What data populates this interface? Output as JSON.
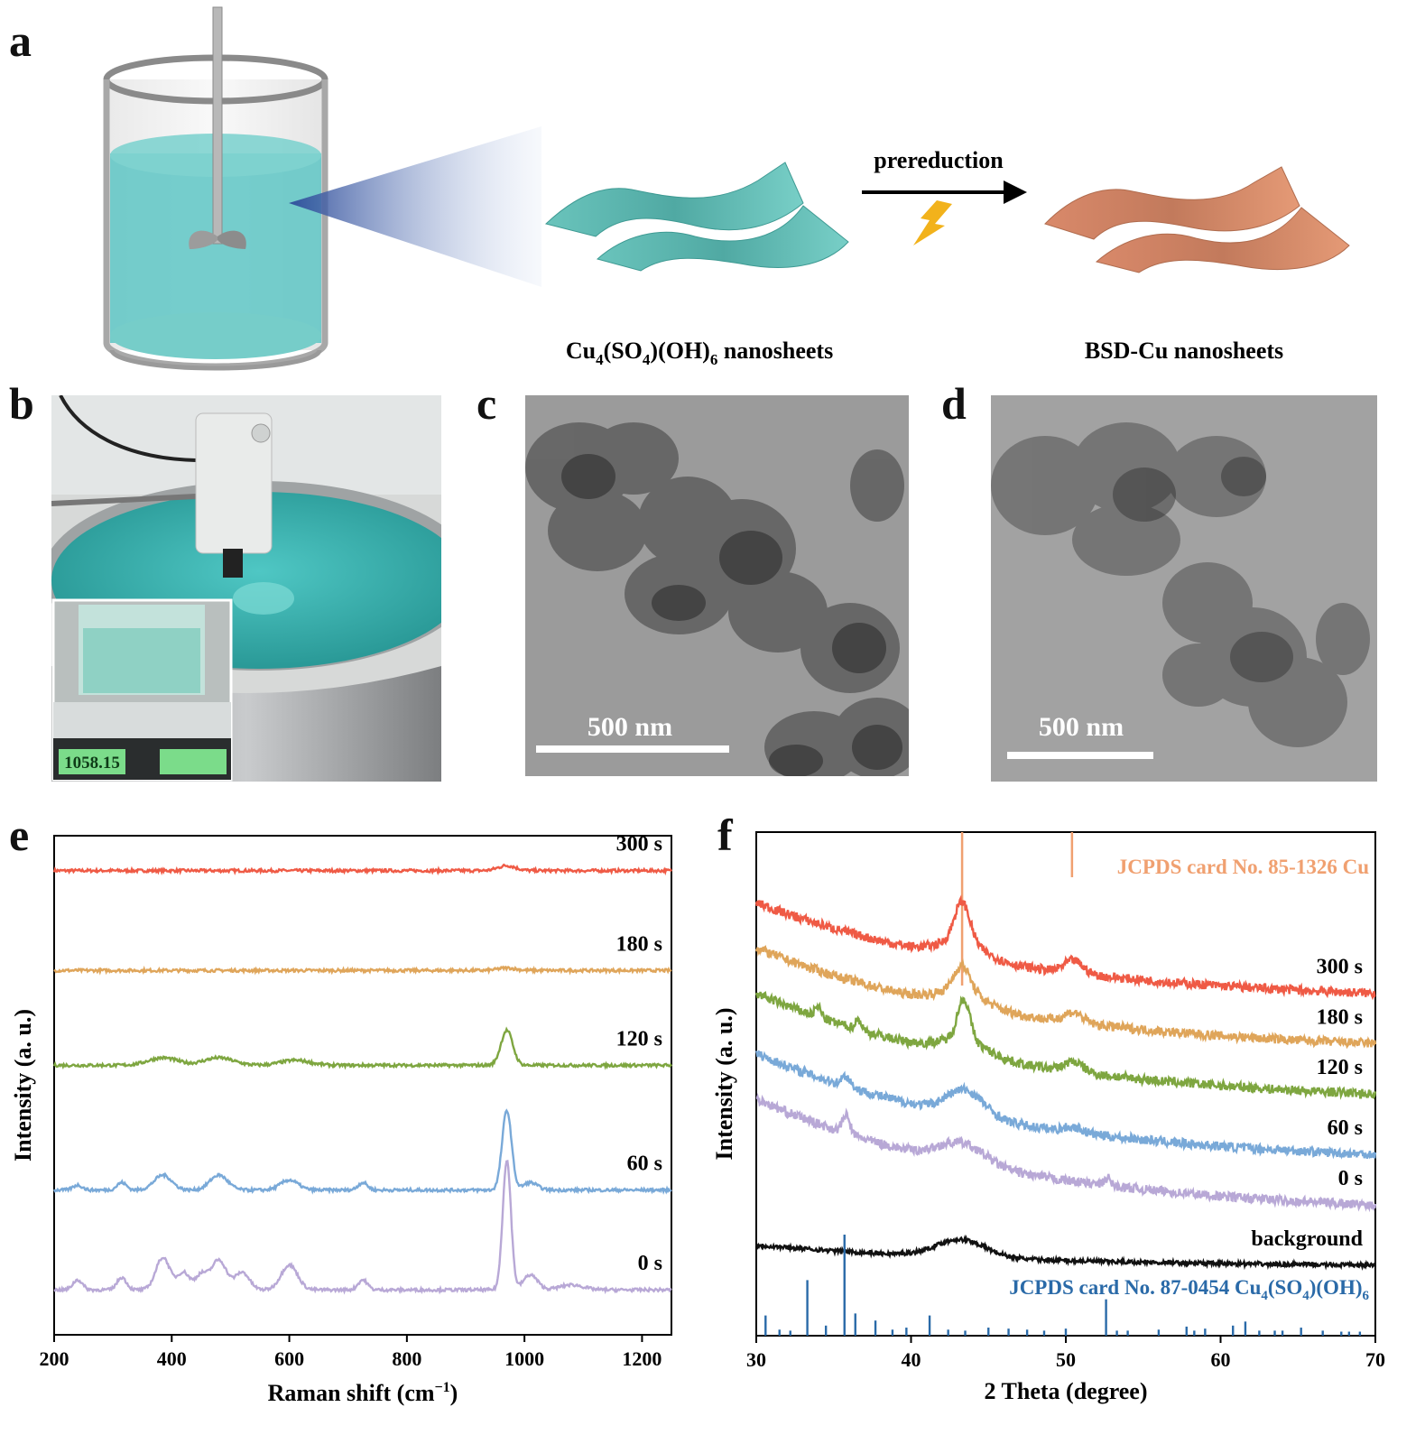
{
  "panels": {
    "a": {
      "letter": "a",
      "arrow_label": "prereduction",
      "label_left_parts": [
        "Cu",
        "4",
        "(SO",
        "4",
        ")(OH)",
        "6",
        " nanosheets"
      ],
      "label_right": "BSD-Cu nanosheets"
    },
    "b": {
      "letter": "b",
      "balance_reading": "1058.15"
    },
    "c": {
      "letter": "c",
      "scale_bar": "500 nm"
    },
    "d": {
      "letter": "d",
      "scale_bar": "500 nm"
    },
    "e": {
      "letter": "e"
    },
    "f": {
      "letter": "f"
    }
  },
  "colors": {
    "s300": "#ef5a45",
    "s180": "#dfa55a",
    "s120": "#7ea640",
    "s60": "#79a9d8",
    "s0": "#b8a8d6",
    "background": "#111111",
    "cu_ref": "#f0a070",
    "cso_ref": "#2a6aa8",
    "solution": "#5ec6c4",
    "sheet_green": "#6ec8c0",
    "sheet_copper": "#e0906a"
  },
  "chart_data": [
    {
      "type": "line",
      "xlabel": "Raman shift (cm",
      "xlabel_sup": "−1",
      "xlabel_tail": ")",
      "ylabel": "Intensity (a. u.)",
      "xlim": [
        200,
        1250
      ],
      "xticks": [
        200,
        400,
        600,
        800,
        1000,
        1200
      ],
      "series": [
        {
          "name": "300 s",
          "key": "s300",
          "baseline": 0.93,
          "peaks": [
            [
              970,
              0.01,
              15
            ]
          ]
        },
        {
          "name": "180 s",
          "key": "s180",
          "baseline": 0.73,
          "peaks": [
            [
              970,
              0.005,
              15
            ]
          ]
        },
        {
          "name": "120 s",
          "key": "s120",
          "baseline": 0.54,
          "peaks": [
            [
              970,
              0.07,
              10
            ],
            [
              385,
              0.015,
              25
            ],
            [
              480,
              0.015,
              25
            ],
            [
              610,
              0.01,
              25
            ]
          ]
        },
        {
          "name": "60 s",
          "key": "s60",
          "baseline": 0.29,
          "peaks": [
            [
              970,
              0.16,
              8
            ],
            [
              385,
              0.03,
              15
            ],
            [
              480,
              0.03,
              15
            ],
            [
              315,
              0.015,
              8
            ],
            [
              240,
              0.01,
              8
            ],
            [
              600,
              0.02,
              15
            ],
            [
              725,
              0.015,
              8
            ],
            [
              1010,
              0.015,
              12
            ]
          ]
        },
        {
          "name": "0 s",
          "key": "s0",
          "baseline": 0.09,
          "peaks": [
            [
              970,
              0.26,
              7
            ],
            [
              385,
              0.065,
              12
            ],
            [
              480,
              0.06,
              13
            ],
            [
              420,
              0.035,
              10
            ],
            [
              450,
              0.03,
              10
            ],
            [
              520,
              0.035,
              12
            ],
            [
              315,
              0.025,
              8
            ],
            [
              240,
              0.02,
              8
            ],
            [
              600,
              0.05,
              14
            ],
            [
              725,
              0.02,
              8
            ],
            [
              1010,
              0.03,
              12
            ],
            [
              1080,
              0.01,
              20
            ]
          ]
        }
      ]
    },
    {
      "type": "line",
      "xlabel": "2 Theta (degree)",
      "ylabel": "Intensity (a. u.)",
      "xlim": [
        30,
        70
      ],
      "xticks": [
        30,
        40,
        50,
        60,
        70
      ],
      "ref_top": {
        "label": "JCPDS card No. 85-1326 Cu",
        "lines": [
          [
            43.3,
            1.0
          ],
          [
            50.4,
            0.45
          ]
        ]
      },
      "ref_bottom": {
        "label_parts": [
          "JCPDS card No. 87-0454 Cu",
          "4",
          "(SO",
          "4",
          ")(OH)",
          "6"
        ],
        "lines": [
          [
            35.7,
            1.0
          ],
          [
            33.3,
            0.55
          ],
          [
            52.6,
            0.36
          ],
          [
            36.4,
            0.22
          ],
          [
            30.6,
            0.2
          ],
          [
            41.2,
            0.2
          ],
          [
            37.7,
            0.15
          ],
          [
            45.0,
            0.08
          ],
          [
            61.6,
            0.14
          ],
          [
            60.8,
            0.1
          ],
          [
            57.8,
            0.09
          ],
          [
            65.2,
            0.08
          ],
          [
            50.0,
            0.07
          ],
          [
            34.5,
            0.1
          ],
          [
            39.7,
            0.08
          ],
          [
            47.5,
            0.06
          ],
          [
            54.0,
            0.05
          ],
          [
            56.0,
            0.06
          ],
          [
            59.0,
            0.07
          ],
          [
            62.5,
            0.05
          ],
          [
            63.5,
            0.05
          ],
          [
            66.6,
            0.05
          ],
          [
            67.8,
            0.04
          ],
          [
            69.0,
            0.04
          ],
          [
            31.5,
            0.06
          ],
          [
            32.2,
            0.05
          ],
          [
            38.8,
            0.06
          ],
          [
            42.4,
            0.06
          ],
          [
            43.5,
            0.05
          ],
          [
            46.3,
            0.07
          ],
          [
            48.6,
            0.05
          ],
          [
            53.3,
            0.05
          ],
          [
            58.3,
            0.05
          ],
          [
            64.0,
            0.05
          ],
          [
            68.3,
            0.04
          ]
        ]
      },
      "series": [
        {
          "name": "300 s",
          "key": "s300",
          "start": 0.86,
          "end": 0.68,
          "peaks": [
            [
              43.3,
              0.08,
              0.5
            ],
            [
              43.3,
              0.03,
              1.5
            ],
            [
              50.5,
              0.025,
              0.6
            ]
          ]
        },
        {
          "name": "180 s",
          "key": "s180",
          "start": 0.77,
          "end": 0.58,
          "peaks": [
            [
              43.3,
              0.05,
              0.5
            ],
            [
              43.3,
              0.03,
              1.5
            ],
            [
              50.5,
              0.02,
              0.6
            ]
          ]
        },
        {
          "name": "120 s",
          "key": "s120",
          "start": 0.68,
          "end": 0.48,
          "peaks": [
            [
              43.4,
              0.08,
              0.4
            ],
            [
              43.4,
              0.03,
              1.5
            ],
            [
              36.6,
              0.02,
              0.2
            ],
            [
              50.5,
              0.02,
              0.6
            ],
            [
              34.0,
              0.02,
              0.2
            ]
          ]
        },
        {
          "name": "60 s",
          "key": "s60",
          "start": 0.56,
          "end": 0.36,
          "peaks": [
            [
              43.5,
              0.05,
              1.2
            ],
            [
              35.8,
              0.02,
              0.3
            ],
            [
              50.5,
              0.01,
              0.6
            ]
          ]
        },
        {
          "name": "0 s",
          "key": "s0",
          "start": 0.47,
          "end": 0.26,
          "peaks": [
            [
              43.3,
              0.04,
              1.5
            ],
            [
              35.8,
              0.035,
              0.25
            ],
            [
              52.7,
              0.015,
              0.2
            ]
          ]
        },
        {
          "name": "background",
          "key": "background",
          "start": 0.18,
          "end": 0.14,
          "peaks": [
            [
              43.2,
              0.035,
              1.6
            ]
          ]
        }
      ]
    }
  ]
}
